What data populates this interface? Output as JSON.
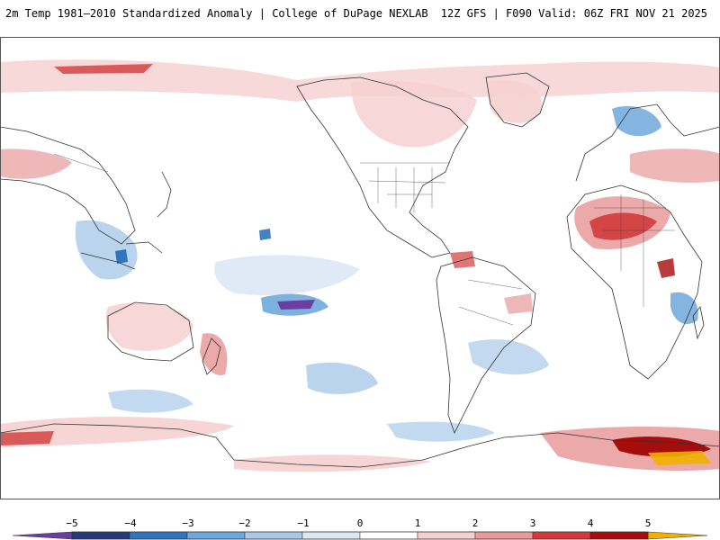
{
  "header": {
    "title": "2m Temp 1981–2010 Standardized Anomaly | College of DuPage NEXLAB",
    "run_info": "12Z GFS | F090 Valid: 06Z FRI NOV 21 2025"
  },
  "colorbar": {
    "labels": [
      "−5",
      "−4",
      "−3",
      "−2",
      "−1",
      "0",
      "1",
      "2",
      "3",
      "4",
      "5"
    ],
    "colors": {
      "lt_-5": "#6b3fa0",
      "-5_-4": "#243a75",
      "-4_-3": "#2f74bf",
      "-3_-2": "#6fa8dc",
      "-2_-1": "#a9c9ea",
      "-1_0": "#dde8f5",
      "0_1": "#ffffff",
      "1_2": "#f6d0d0",
      "2_3": "#e89a9a",
      "3_4": "#d23a3a",
      "4_5": "#a50d0d",
      "gt_5": "#f0b000"
    }
  },
  "map": {
    "projection": "cylindrical equidistant, centered on 180°",
    "colors": {
      "ocean": "#ffffff",
      "coast": "#333333",
      "border": "#444444"
    }
  }
}
